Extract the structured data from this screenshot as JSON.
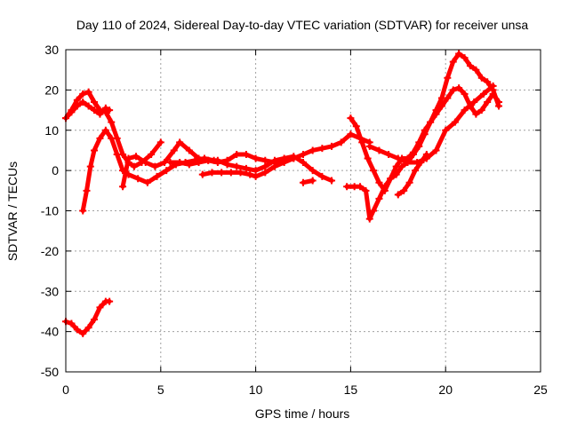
{
  "chart_data": {
    "type": "scatter",
    "title": "Day 110 of 2024, Sidereal Day-to-day VTEC variation (SDTVAR) for receiver unsa",
    "xlabel": "GPS time / hours",
    "ylabel": "SDTVAR / TECUs",
    "xlim": [
      0,
      25
    ],
    "ylim": [
      -50,
      30
    ],
    "xticks": [
      0,
      5,
      10,
      15,
      20,
      25
    ],
    "yticks": [
      -50,
      -40,
      -30,
      -20,
      -10,
      0,
      10,
      20,
      30
    ],
    "xtick_labels": [
      "0",
      "5",
      "10",
      "15",
      "20",
      "25"
    ],
    "ytick_labels": [
      "-50",
      "-40",
      "-30",
      "-20",
      "-10",
      "0",
      "10",
      "20",
      "30"
    ],
    "grid": true,
    "marker": "+",
    "color": "#ff0000",
    "series": [
      {
        "name": "track-1",
        "x": [
          0.0,
          0.3,
          0.6,
          0.9,
          1.2,
          1.5,
          1.8,
          2.1,
          2.3
        ],
        "y": [
          13,
          14.5,
          16,
          17,
          16,
          15,
          14,
          15.5,
          15
        ]
      },
      {
        "name": "track-2",
        "x": [
          0.0,
          0.3,
          0.6,
          0.9,
          1.2,
          1.5,
          1.8,
          2.1,
          2.4,
          2.7,
          3.0,
          3.3,
          3.6,
          4.0,
          4.5,
          5.0
        ],
        "y": [
          13,
          15,
          17.5,
          19,
          19.5,
          17,
          15,
          14.5,
          12,
          8,
          4,
          2,
          1,
          2,
          4,
          7
        ]
      },
      {
        "name": "track-3",
        "x": [
          0.9,
          1.1,
          1.3,
          1.5,
          1.8,
          2.1,
          2.4,
          2.7,
          3.0,
          3.3,
          3.8,
          4.3,
          4.8,
          5.3,
          5.8,
          6.3,
          6.8,
          7.3,
          7.8
        ],
        "y": [
          -10,
          -5,
          1,
          5,
          8,
          10,
          8,
          4,
          0,
          -1,
          -2,
          -3,
          -1.5,
          0,
          1.5,
          2,
          2.5,
          3,
          2.5
        ]
      },
      {
        "name": "track-4",
        "x": [
          3.0,
          3.3,
          3.7,
          4.2,
          4.7,
          5.2,
          5.7,
          6.0,
          6.5,
          7.0,
          7.5,
          8.0,
          8.5,
          9.0,
          9.5,
          10.0,
          10.5,
          11.0,
          11.5,
          12.0
        ],
        "y": [
          -4,
          3,
          3.5,
          2,
          1,
          2,
          5,
          7,
          5,
          3,
          2.5,
          2,
          2.5,
          4,
          4,
          3,
          2.5,
          2,
          2.5,
          3
        ]
      },
      {
        "name": "track-5",
        "x": [
          5.5,
          6.0,
          6.5,
          7.0,
          7.5,
          8.0,
          8.5,
          9.0,
          9.5,
          10.0,
          10.5,
          11.0,
          11.5,
          12.0,
          12.5,
          13.0,
          13.5,
          14.0
        ],
        "y": [
          2,
          2,
          1.5,
          2,
          2.5,
          2.5,
          1.5,
          1.0,
          0.5,
          0,
          1,
          2.5,
          3,
          3.5,
          2,
          0,
          -1.5,
          -2.5
        ]
      },
      {
        "name": "track-6",
        "x": [
          7.2,
          7.7,
          8.2,
          8.7,
          9.2,
          9.7,
          10.0,
          10.5,
          11.0,
          11.5,
          12.0,
          12.5,
          13.0,
          13.5,
          14.0,
          14.5,
          15.0,
          15.5,
          16.0
        ],
        "y": [
          -1,
          -0.5,
          -0.5,
          -0.5,
          -0.5,
          -1,
          -1.5,
          -0.5,
          1,
          2,
          3,
          4,
          5,
          5.5,
          6,
          7,
          9,
          8,
          7
        ]
      },
      {
        "name": "track-7",
        "x": [
          12.5,
          13.0
        ],
        "y": [
          -3,
          -2.5
        ]
      },
      {
        "name": "track-8",
        "x": [
          15.0,
          15.3,
          15.6,
          15.9,
          16.2,
          16.5,
          16.8,
          17.1,
          17.4,
          17.7,
          18.0,
          18.3,
          18.6,
          18.9,
          19.2,
          19.5,
          19.8,
          20.1,
          20.4,
          20.7,
          21.0,
          21.3,
          21.6,
          21.9,
          22.2,
          22.5,
          22.8
        ],
        "y": [
          13,
          11,
          7,
          3,
          0,
          -3,
          -5,
          -2,
          1,
          3,
          3,
          4.5,
          7,
          10,
          12,
          14,
          16,
          18,
          20,
          20.5,
          19,
          16,
          14,
          15,
          17,
          19,
          17
        ]
      },
      {
        "name": "track-9",
        "x": [
          14.8,
          15.2,
          15.5,
          15.8,
          16.0,
          16.2,
          16.5,
          16.8,
          17.1,
          17.4,
          17.7,
          18.0,
          18.3,
          18.6,
          18.9,
          19.2,
          19.5,
          19.8,
          20.1,
          20.4,
          20.7,
          21.0,
          21.3,
          21.6,
          21.9,
          22.2,
          22.5,
          22.8
        ],
        "y": [
          -4,
          -4,
          -4,
          -5,
          -12,
          -10,
          -7,
          -4,
          -2,
          -1,
          1,
          2,
          4,
          6,
          9,
          12,
          15,
          18,
          23,
          27,
          29,
          28,
          26,
          25,
          23,
          22,
          20,
          16
        ]
      },
      {
        "name": "track-10",
        "x": [
          16.0,
          16.5,
          17.0,
          17.5,
          18.0,
          18.5,
          19.0,
          19.5,
          20.0,
          20.5,
          21.0,
          21.5,
          22.0,
          22.5
        ],
        "y": [
          6,
          5,
          4,
          3,
          2,
          2,
          3,
          5,
          10,
          12,
          15,
          17,
          19,
          21
        ]
      },
      {
        "name": "track-11",
        "x": [
          17.5,
          17.8,
          18.1,
          18.4,
          18.7,
          19.0
        ],
        "y": [
          -6,
          -5,
          -3,
          0,
          2,
          4
        ]
      },
      {
        "name": "track-12",
        "x": [
          0.0,
          0.3,
          0.6,
          0.9,
          1.2,
          1.5,
          1.8,
          2.1,
          2.3
        ],
        "y": [
          -37.5,
          -38,
          -39.5,
          -40.5,
          -39,
          -37,
          -34,
          -32.5,
          -32.5
        ]
      }
    ]
  }
}
